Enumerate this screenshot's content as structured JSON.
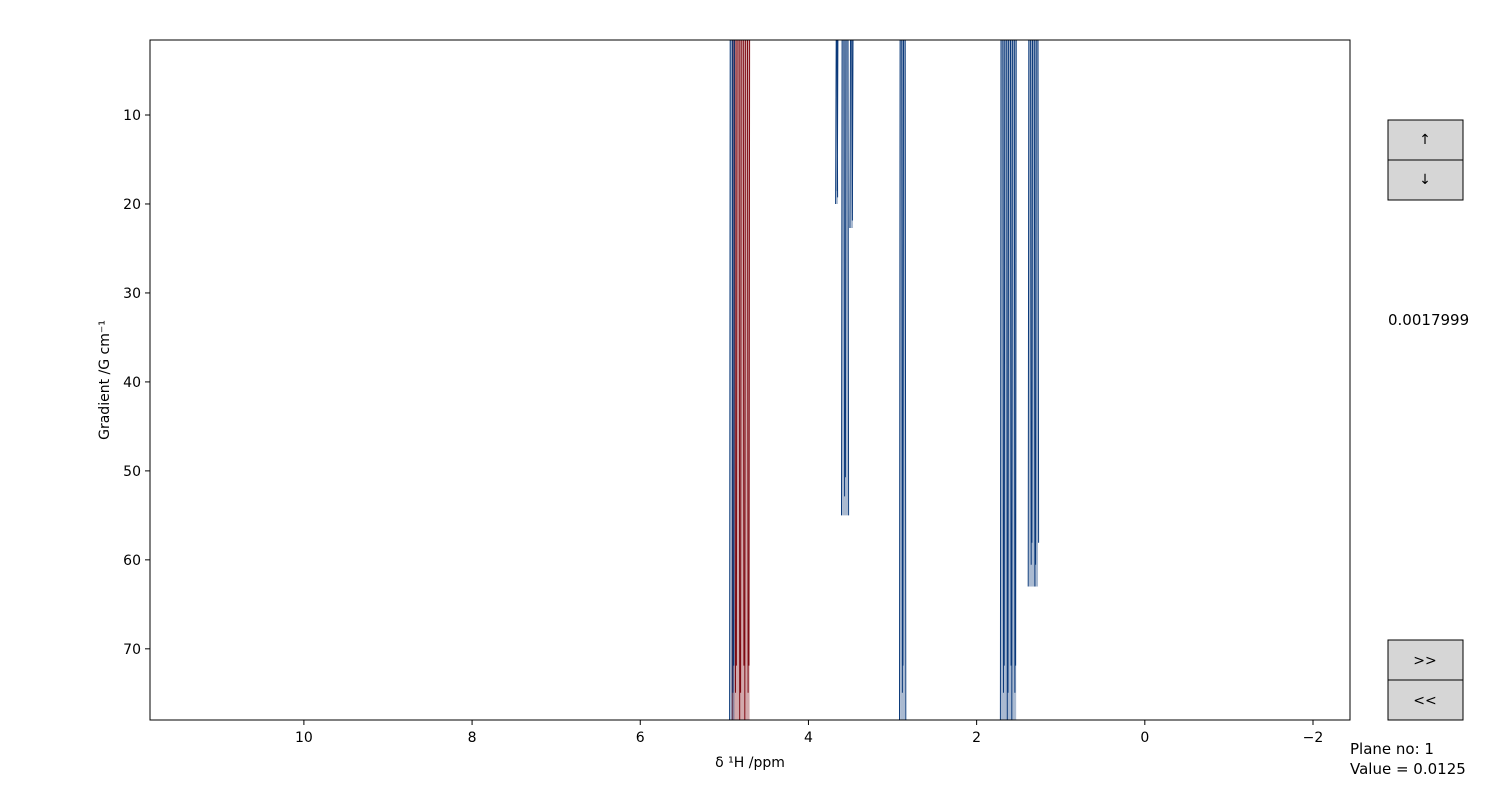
{
  "chart_data": {
    "type": "contour",
    "x_label": "δ ¹H /ppm",
    "y_label": "Gradient /G cm⁻¹",
    "xlim": [
      11.83,
      -2.44
    ],
    "xticks": [
      10,
      8,
      6,
      4,
      2,
      0,
      {
        "value": -2,
        "label": "−2"
      }
    ],
    "ylim": [
      1.57,
      78
    ],
    "yticks": [
      10,
      20,
      30,
      40,
      50,
      60,
      70
    ],
    "series": [
      {
        "color": "#7f0a12",
        "peaks": [
          {
            "x": [
              4.9,
              4.7
            ],
            "y": [
              1.57,
              78
            ]
          }
        ]
      },
      {
        "color": "#0b3a7a",
        "peaks": [
          {
            "x": [
              4.93,
              4.88
            ],
            "y": [
              1.57,
              78
            ]
          },
          {
            "x": [
              3.67,
              3.65
            ],
            "y": [
              1.57,
              20
            ]
          },
          {
            "x": [
              3.6,
              3.53
            ],
            "y": [
              1.57,
              55
            ]
          },
          {
            "x": [
              3.5,
              3.47
            ],
            "y": [
              1.57,
              22.7
            ]
          },
          {
            "x": [
              2.91,
              2.85
            ],
            "y": [
              1.57,
              78
            ]
          },
          {
            "x": [
              1.71,
              1.53
            ],
            "y": [
              1.57,
              78
            ]
          },
          {
            "x": [
              1.38,
              1.27
            ],
            "y": [
              1.57,
              63
            ]
          }
        ]
      }
    ]
  },
  "controls": {
    "up": "↑",
    "down": "↓",
    "next": ">>",
    "prev": "<<"
  },
  "readout": "0.0017999",
  "status": [
    "Plane no: 1",
    "Value = 0.0125"
  ]
}
